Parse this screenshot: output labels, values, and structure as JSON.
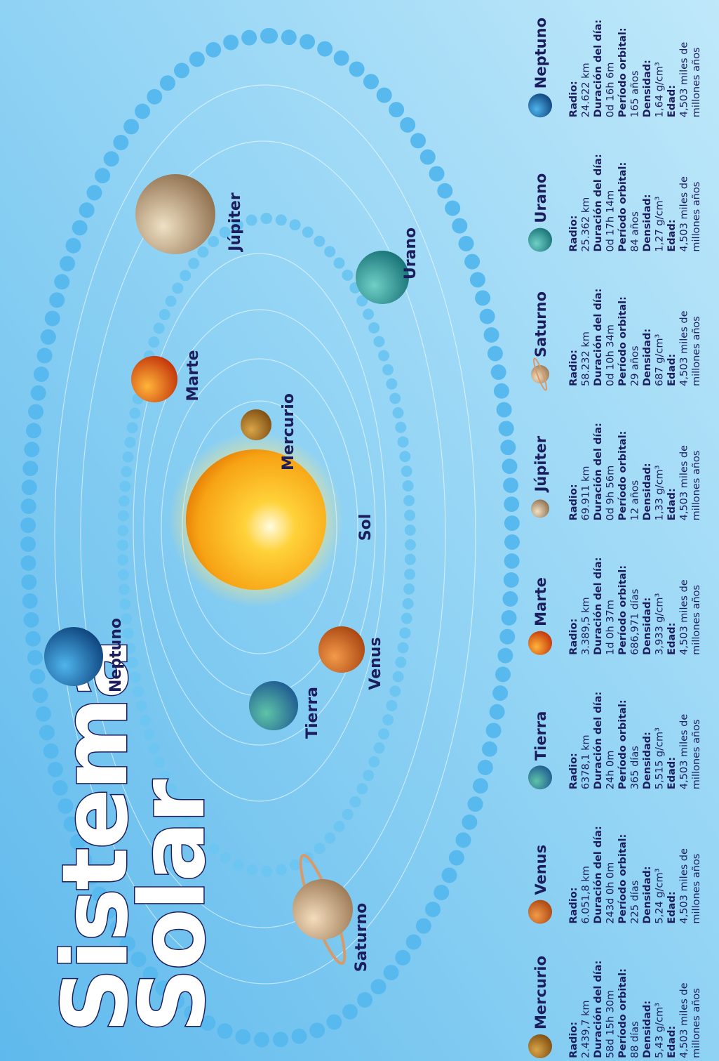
{
  "title": [
    "Sistema",
    "Solar"
  ],
  "diagram": {
    "sun": "Sol",
    "planets": [
      "Mercurio",
      "Venus",
      "Tierra",
      "Marte",
      "Júpiter",
      "Saturno",
      "Urano",
      "Neptuno"
    ]
  },
  "cards": [
    {
      "name": "Mercurio",
      "fields": [
        {
          "label": "Radio:",
          "lines": [
            "2.439,7 km"
          ]
        },
        {
          "label": "Duración del día:",
          "lines": [
            "58d 15h 30m"
          ]
        },
        {
          "label": "Período orbital:",
          "lines": [
            "88 días"
          ]
        },
        {
          "label": "Densidad:",
          "lines": [
            "5,43 g/cm³"
          ]
        },
        {
          "label": "Edad:",
          "lines": [
            "4,503 miles de",
            "millones años"
          ]
        }
      ]
    },
    {
      "name": "Venus",
      "fields": [
        {
          "label": "Radio:",
          "lines": [
            "6.051,8 km"
          ]
        },
        {
          "label": "Duración del día:",
          "lines": [
            "243d 0h 0m"
          ]
        },
        {
          "label": "Período orbital:",
          "lines": [
            "225 días"
          ]
        },
        {
          "label": "Densidad:",
          "lines": [
            "5,24 g/cm³"
          ]
        },
        {
          "label": "Edad:",
          "lines": [
            "4,503 miles de",
            "millones años"
          ]
        }
      ]
    },
    {
      "name": "Tierra",
      "fields": [
        {
          "label": "Radio:",
          "lines": [
            "6378,1 km"
          ]
        },
        {
          "label": "Duración del día:",
          "lines": [
            "24h 0m"
          ]
        },
        {
          "label": "Período orbital:",
          "lines": [
            "365 días"
          ]
        },
        {
          "label": "Densidad:",
          "lines": [
            "5,515 g/cm³"
          ]
        },
        {
          "label": "Edad:",
          "lines": [
            "4,503 miles de",
            "millones años"
          ]
        }
      ]
    },
    {
      "name": "Marte",
      "fields": [
        {
          "label": "Radio:",
          "lines": [
            "3.389,5 km"
          ]
        },
        {
          "label": "Duración del día:",
          "lines": [
            "1d 0h 37m"
          ]
        },
        {
          "label": "Período orbital:",
          "lines": [
            "686,971 días"
          ]
        },
        {
          "label": "Densidad:",
          "lines": [
            "3,933 g/cm³"
          ]
        },
        {
          "label": "Edad:",
          "lines": [
            "4,503 miles de",
            "millones años"
          ]
        }
      ]
    },
    {
      "name": "Júpiter",
      "fields": [
        {
          "label": "Radio:",
          "lines": [
            "69.911 km"
          ]
        },
        {
          "label": "Duración del día:",
          "lines": [
            "0d 9h 56m"
          ]
        },
        {
          "label": "Período orbital:",
          "lines": [
            "12 años"
          ]
        },
        {
          "label": "Densidad:",
          "lines": [
            "1,33 g/cm³"
          ]
        },
        {
          "label": "Edad:",
          "lines": [
            "4,503 miles de",
            "millones años"
          ]
        }
      ]
    },
    {
      "name": "Saturno",
      "fields": [
        {
          "label": "Radio:",
          "lines": [
            "58.232 km"
          ]
        },
        {
          "label": "Duración del día:",
          "lines": [
            "0d 10h 34m"
          ]
        },
        {
          "label": "Período orbital:",
          "lines": [
            "29 años"
          ]
        },
        {
          "label": "Densidad:",
          "lines": [
            "687 g/cm³"
          ]
        },
        {
          "label": "Edad:",
          "lines": [
            "4,503 miles de",
            "millones años"
          ]
        }
      ]
    },
    {
      "name": "Urano",
      "fields": [
        {
          "label": "Radio:",
          "lines": [
            "25.362 km"
          ]
        },
        {
          "label": "Duración del día:",
          "lines": [
            "0d 17h 14m"
          ]
        },
        {
          "label": "Período orbital:",
          "lines": [
            "84 años"
          ]
        },
        {
          "label": "Densidad:",
          "lines": [
            "1,27 g/cm³"
          ]
        },
        {
          "label": "Edad:",
          "lines": [
            "4,503 miles de",
            "millones años"
          ]
        }
      ]
    },
    {
      "name": "Neptuno",
      "fields": [
        {
          "label": "Radio:",
          "lines": [
            "24.622 km"
          ]
        },
        {
          "label": "Duración del día:",
          "lines": [
            "0d 16h 6m"
          ]
        },
        {
          "label": "Período orbital:",
          "lines": [
            "165 años"
          ]
        },
        {
          "label": "Densidad:",
          "lines": [
            "1,64 g/cm³"
          ]
        },
        {
          "label": "Edad:",
          "lines": [
            "4,503 miles de",
            "millones años"
          ]
        }
      ]
    }
  ]
}
